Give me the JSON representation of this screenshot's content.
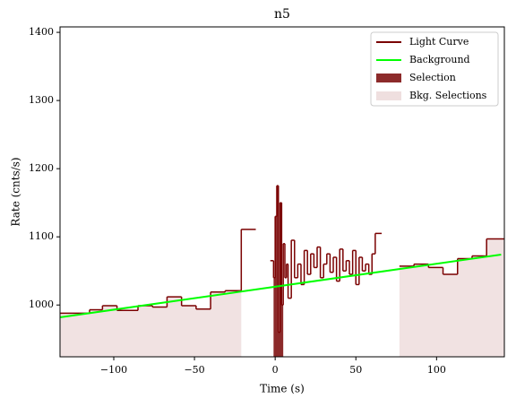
{
  "chart_data": {
    "type": "step",
    "title": "n5",
    "xlabel": "Time (s)",
    "ylabel": "Rate (cnts/s)",
    "xlim": [
      -133.3,
      142
    ],
    "ylim": [
      924,
      1408
    ],
    "xticks": [
      {
        "value": -100,
        "label": "−100"
      },
      {
        "value": -50,
        "label": "−50"
      },
      0,
      50,
      100
    ],
    "yticks": [
      1000,
      1100,
      1200,
      1300,
      1400
    ],
    "legend": "upper right",
    "series": [
      {
        "name": "Light Curve",
        "color": "#7a0000",
        "bins": [
          -133,
          -115,
          -107,
          -98,
          -85,
          -76,
          -67,
          -58,
          -49,
          -40,
          -31,
          -21,
          -12,
          -3,
          -1,
          0,
          1,
          2,
          3,
          4,
          5,
          6,
          7,
          8,
          10,
          12,
          14,
          16,
          18,
          20,
          22,
          24,
          26,
          28,
          30,
          32,
          34,
          36,
          38,
          40,
          42,
          44,
          46,
          48,
          50,
          52,
          54,
          56,
          58,
          60,
          62,
          66,
          77,
          86,
          95,
          104,
          113,
          122,
          131,
          142
        ],
        "values": [
          988,
          993,
          999,
          992,
          999,
          997,
          1012,
          999,
          994,
          1019,
          1021,
          1111,
          null,
          1065,
          1040,
          1130,
          1175,
          960,
          1150,
          1000,
          1090,
          1040,
          1060,
          1010,
          1095,
          1040,
          1060,
          1030,
          1080,
          1045,
          1075,
          1055,
          1085,
          1040,
          1060,
          1075,
          1048,
          1070,
          1035,
          1082,
          1050,
          1065,
          1045,
          1080,
          1030,
          1070,
          1050,
          1060,
          1045,
          1075,
          1105,
          null,
          1057,
          1060,
          1055,
          1045,
          1068,
          1072,
          1097
        ]
      },
      {
        "name": "Background",
        "color": "#00ff00",
        "x": [
          -133,
          140
        ],
        "values": [
          982,
          1074
        ]
      }
    ],
    "selection": {
      "name": "Selection",
      "color": "#8c2a2a",
      "range": [
        -1,
        5
      ]
    },
    "bkg_selections": {
      "name": "Bkg. Selections",
      "color": "#efdfdf",
      "ranges": [
        [
          -133.3,
          -21
        ],
        [
          77,
          142
        ]
      ]
    }
  }
}
